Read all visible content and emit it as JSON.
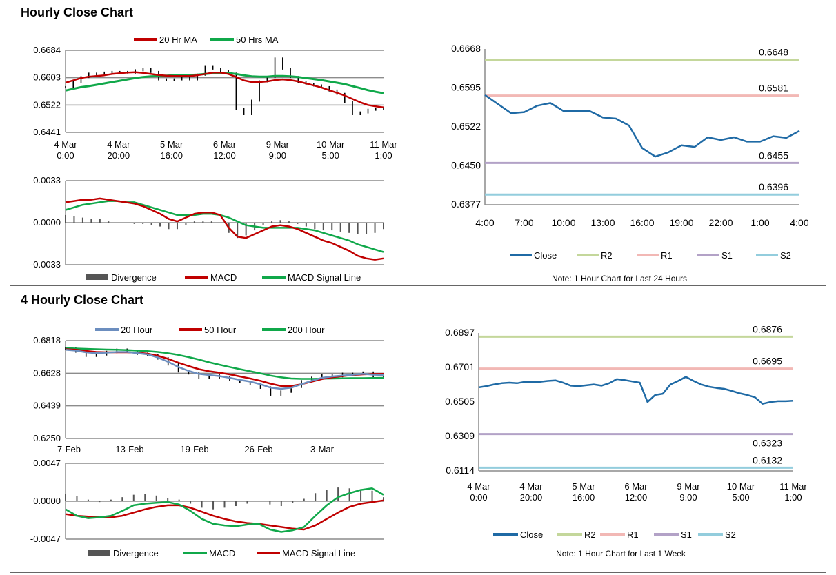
{
  "sections": {
    "hourly_title": "Hourly Close Chart",
    "four_hourly_title": "4 Hourly Close Chart"
  },
  "colors": {
    "red": "#c00000",
    "green": "#10a84a",
    "blue": "#1f6aa5",
    "steelblue": "#6c8ebf",
    "gray": "#555555",
    "grid": "#8c8c8c",
    "r2": "#c4d79b",
    "r1": "#f2b8b5",
    "s1": "#b3a2c7",
    "s2": "#93cddd"
  },
  "chart_data": [
    {
      "id": "h_price",
      "type": "line",
      "legend": [
        "20 Hr MA",
        "50 Hrs MA"
      ],
      "ylim": [
        0.6441,
        0.6684
      ],
      "yticks": [
        "0.6684",
        "0.6603",
        "0.6522",
        "0.6441"
      ],
      "xticks": [
        [
          "4 Mar",
          "0:00"
        ],
        [
          "4 Mar",
          "20:00"
        ],
        [
          "5 Mar",
          "16:00"
        ],
        [
          "6 Mar",
          "12:00"
        ],
        [
          "9 Mar",
          "9:00"
        ],
        [
          "10 Mar",
          "5:00"
        ],
        [
          "11 Mar",
          "1:00"
        ]
      ],
      "close": [
        0.6575,
        0.659,
        0.6605,
        0.6615,
        0.6612,
        0.6618,
        0.662,
        0.662,
        0.6618,
        0.6625,
        0.6628,
        0.662,
        0.6598,
        0.6595,
        0.6598,
        0.6605,
        0.6598,
        0.6612,
        0.6635,
        0.663,
        0.6622,
        0.6615,
        0.651,
        0.6495,
        0.6535,
        0.6592,
        0.6605,
        0.666,
        0.663,
        0.6605,
        0.659,
        0.6585,
        0.658,
        0.6575,
        0.6565,
        0.6555,
        0.653,
        0.6495,
        0.65,
        0.6508,
        0.651,
        0.6512
      ],
      "ma20": [
        0.6588,
        0.6595,
        0.6602,
        0.6606,
        0.6608,
        0.661,
        0.6614,
        0.6616,
        0.6618,
        0.6619,
        0.6617,
        0.6614,
        0.6611,
        0.6609,
        0.6608,
        0.6608,
        0.6608,
        0.661,
        0.6614,
        0.6618,
        0.6618,
        0.6614,
        0.6605,
        0.6595,
        0.659,
        0.659,
        0.6592,
        0.6596,
        0.6598,
        0.6596,
        0.6592,
        0.6586,
        0.658,
        0.6574,
        0.6566,
        0.6558,
        0.655,
        0.654,
        0.653,
        0.6522,
        0.6518,
        0.6515
      ],
      "ma50": [
        0.6565,
        0.657,
        0.6575,
        0.6578,
        0.6582,
        0.6586,
        0.659,
        0.6594,
        0.6598,
        0.6602,
        0.6605,
        0.6607,
        0.6608,
        0.6609,
        0.661,
        0.661,
        0.6611,
        0.6612,
        0.6614,
        0.6616,
        0.6617,
        0.6617,
        0.6614,
        0.661,
        0.6607,
        0.6606,
        0.6606,
        0.6608,
        0.6608,
        0.6607,
        0.6605,
        0.6602,
        0.6599,
        0.6596,
        0.6592,
        0.6588,
        0.6584,
        0.6578,
        0.6572,
        0.6566,
        0.6561,
        0.6557
      ]
    },
    {
      "id": "h_macd",
      "type": "line",
      "legend": [
        "Divergence",
        "MACD",
        "MACD Signal Line"
      ],
      "ylim": [
        -0.0033,
        0.0033
      ],
      "yticks": [
        "0.0033",
        "0.0000",
        "-0.0033"
      ],
      "macd": [
        0.0016,
        0.0017,
        0.0018,
        0.0018,
        0.0019,
        0.0018,
        0.0017,
        0.0016,
        0.0015,
        0.0013,
        0.001,
        0.0007,
        0.0003,
        0.0001,
        0.0004,
        0.0007,
        0.0008,
        0.0008,
        0.0006,
        -0.0004,
        -0.0011,
        -0.0012,
        -0.0009,
        -0.0006,
        -0.0003,
        -0.0002,
        -0.0003,
        -0.0005,
        -0.0008,
        -0.0011,
        -0.0014,
        -0.0016,
        -0.0019,
        -0.0022,
        -0.0026,
        -0.0028,
        -0.0029,
        -0.0028
      ],
      "signal": [
        0.001,
        0.0012,
        0.0014,
        0.0015,
        0.0016,
        0.0017,
        0.0017,
        0.0016,
        0.0016,
        0.0014,
        0.0012,
        0.001,
        0.0008,
        0.0006,
        0.0006,
        0.0006,
        0.0007,
        0.0007,
        0.0006,
        0.0004,
        0.0001,
        -0.0002,
        -0.0003,
        -0.0004,
        -0.0004,
        -0.0004,
        -0.0004,
        -0.0004,
        -0.0005,
        -0.0006,
        -0.0008,
        -0.001,
        -0.0012,
        -0.0014,
        -0.0017,
        -0.0019,
        -0.0021,
        -0.0023
      ],
      "divergence": [
        0.0006,
        0.0005,
        0.0004,
        0.0003,
        0.0003,
        0.0001,
        0.0,
        0.0,
        -0.0001,
        -0.0001,
        -0.0002,
        -0.0003,
        -0.0005,
        -0.0005,
        -0.0002,
        0.0001,
        0.0001,
        0.0001,
        0.0,
        -0.0008,
        -0.0012,
        -0.001,
        -0.0006,
        -0.0002,
        0.0001,
        0.0002,
        0.0001,
        -0.0001,
        -0.0003,
        -0.0005,
        -0.0006,
        -0.0006,
        -0.0007,
        -0.0008,
        -0.0009,
        -0.0009,
        -0.0008,
        -0.0005
      ]
    },
    {
      "id": "h_levels",
      "type": "line",
      "legend": [
        "Close",
        "R2",
        "R1",
        "S1",
        "S2"
      ],
      "ylim": [
        0.6377,
        0.6668
      ],
      "yticks": [
        "0.6668",
        "0.6595",
        "0.6522",
        "0.6450",
        "0.6377"
      ],
      "xticks": [
        "4:00",
        "7:00",
        "10:00",
        "13:00",
        "16:00",
        "19:00",
        "22:00",
        "1:00",
        "4:00"
      ],
      "close": [
        0.6582,
        0.6565,
        0.6548,
        0.655,
        0.6562,
        0.6567,
        0.6552,
        0.6552,
        0.6552,
        0.654,
        0.6538,
        0.6525,
        0.6483,
        0.6467,
        0.6475,
        0.6488,
        0.6485,
        0.6503,
        0.6498,
        0.6503,
        0.6495,
        0.6495,
        0.6505,
        0.6502,
        0.6515
      ],
      "levels": {
        "R2": "0.6648",
        "R1": "0.6581",
        "S1": "0.6455",
        "S2": "0.6396"
      },
      "note": "Note: 1 Hour Chart for Last 24 Hours"
    },
    {
      "id": "f_price",
      "type": "line",
      "legend": [
        "20 Hour",
        "50 Hour",
        "200 Hour"
      ],
      "ylim": [
        0.625,
        0.6818
      ],
      "yticks": [
        "0.6818",
        "0.6628",
        "0.6439",
        "0.6250"
      ],
      "xticks": [
        "7-Feb",
        "13-Feb",
        "19-Feb",
        "26-Feb",
        "3-Mar"
      ],
      "close": [
        0.6772,
        0.6755,
        0.673,
        0.6738,
        0.6752,
        0.6765,
        0.6755,
        0.6742,
        0.6735,
        0.6715,
        0.668,
        0.664,
        0.6628,
        0.6602,
        0.6615,
        0.6605,
        0.659,
        0.6578,
        0.6565,
        0.6545,
        0.6505,
        0.6522,
        0.655,
        0.6582,
        0.6602,
        0.6618,
        0.6612,
        0.6625,
        0.6625,
        0.6632,
        0.661,
        0.6615
      ],
      "ma20": [
        0.6765,
        0.676,
        0.675,
        0.6745,
        0.6748,
        0.6752,
        0.6752,
        0.6745,
        0.6738,
        0.672,
        0.6695,
        0.6665,
        0.6642,
        0.6625,
        0.6618,
        0.6612,
        0.6602,
        0.659,
        0.658,
        0.6565,
        0.6545,
        0.6538,
        0.6545,
        0.6565,
        0.6585,
        0.6602,
        0.661,
        0.6615,
        0.662,
        0.6625,
        0.662,
        0.6618
      ],
      "ma50": [
        0.6768,
        0.6765,
        0.6758,
        0.6752,
        0.675,
        0.675,
        0.675,
        0.6748,
        0.6742,
        0.673,
        0.6712,
        0.669,
        0.667,
        0.6652,
        0.664,
        0.6632,
        0.6622,
        0.661,
        0.6598,
        0.6585,
        0.6568,
        0.6555,
        0.6555,
        0.6565,
        0.658,
        0.6595,
        0.6605,
        0.6612,
        0.6618,
        0.6622,
        0.6624,
        0.6625
      ],
      "ma200": [
        0.6775,
        0.6772,
        0.677,
        0.6768,
        0.6766,
        0.6765,
        0.6763,
        0.676,
        0.6757,
        0.6752,
        0.6745,
        0.6735,
        0.6722,
        0.6708,
        0.6692,
        0.6678,
        0.6665,
        0.6652,
        0.664,
        0.6628,
        0.6615,
        0.6605,
        0.6598,
        0.6596,
        0.6596,
        0.6597,
        0.6598,
        0.6599,
        0.66,
        0.66,
        0.6601,
        0.6602
      ]
    },
    {
      "id": "f_macd",
      "type": "line",
      "legend": [
        "Divergence",
        "MACD",
        "MACD Signal Line"
      ],
      "ylim": [
        -0.0047,
        0.0047
      ],
      "yticks": [
        "0.0047",
        "0.0000",
        "-0.0047"
      ],
      "macd": [
        -0.001,
        -0.0018,
        -0.0021,
        -0.002,
        -0.0018,
        -0.0012,
        -0.0005,
        -0.0003,
        -0.0002,
        -0.0001,
        -0.0004,
        -0.0012,
        -0.0022,
        -0.0028,
        -0.003,
        -0.0031,
        -0.0029,
        -0.0028,
        -0.0035,
        -0.0038,
        -0.0036,
        -0.0032,
        -0.0018,
        -0.0005,
        0.0005,
        0.001,
        0.0014,
        0.0016,
        0.0008
      ],
      "signal": [
        -0.0016,
        -0.0018,
        -0.0019,
        -0.002,
        -0.002,
        -0.0018,
        -0.0014,
        -0.001,
        -0.0007,
        -0.0005,
        -0.0005,
        -0.0008,
        -0.0013,
        -0.0018,
        -0.0022,
        -0.0025,
        -0.0027,
        -0.0028,
        -0.003,
        -0.0032,
        -0.0034,
        -0.0035,
        -0.003,
        -0.0022,
        -0.0014,
        -0.0007,
        -0.0003,
        -0.0001,
        0.0001
      ],
      "divergence": [
        0.0009,
        0.0006,
        0.0002,
        -0.0001,
        0.0002,
        0.0005,
        0.0008,
        0.0009,
        0.0007,
        0.0004,
        0.0002,
        -0.0003,
        -0.0008,
        -0.001,
        -0.0008,
        -0.0006,
        -0.0003,
        0.0,
        -0.0004,
        -0.0006,
        -0.0002,
        0.0003,
        0.001,
        0.0014,
        0.0017,
        0.0016,
        0.0015,
        0.0013,
        0.0005
      ]
    },
    {
      "id": "f_levels",
      "type": "line",
      "legend": [
        "Close",
        "R2",
        "R1",
        "S1",
        "S2"
      ],
      "ylim": [
        0.6114,
        0.6897
      ],
      "yticks": [
        "0.6897",
        "0.6701",
        "0.6505",
        "0.6309",
        "0.6114"
      ],
      "xticks": [
        [
          "4 Mar",
          "0:00"
        ],
        [
          "4 Mar",
          "20:00"
        ],
        [
          "5 Mar",
          "16:00"
        ],
        [
          "6 Mar",
          "12:00"
        ],
        [
          "9 Mar",
          "9:00"
        ],
        [
          "10 Mar",
          "5:00"
        ],
        [
          "11 Mar",
          "1:00"
        ]
      ],
      "close": [
        0.6588,
        0.6595,
        0.6605,
        0.6612,
        0.6615,
        0.6612,
        0.662,
        0.662,
        0.662,
        0.6625,
        0.6628,
        0.6615,
        0.6598,
        0.6595,
        0.66,
        0.6605,
        0.6598,
        0.6612,
        0.6635,
        0.663,
        0.6622,
        0.6615,
        0.6505,
        0.6545,
        0.6552,
        0.6605,
        0.6625,
        0.6648,
        0.6625,
        0.6605,
        0.6592,
        0.6585,
        0.658,
        0.6568,
        0.6555,
        0.6545,
        0.6532,
        0.6495,
        0.6505,
        0.651,
        0.651,
        0.6512
      ],
      "levels": {
        "R2": "0.6876",
        "R1": "0.6695",
        "S1": "0.6323",
        "S2": "0.6132"
      },
      "note": "Note: 1 Hour Chart for Last 1 Week"
    }
  ]
}
